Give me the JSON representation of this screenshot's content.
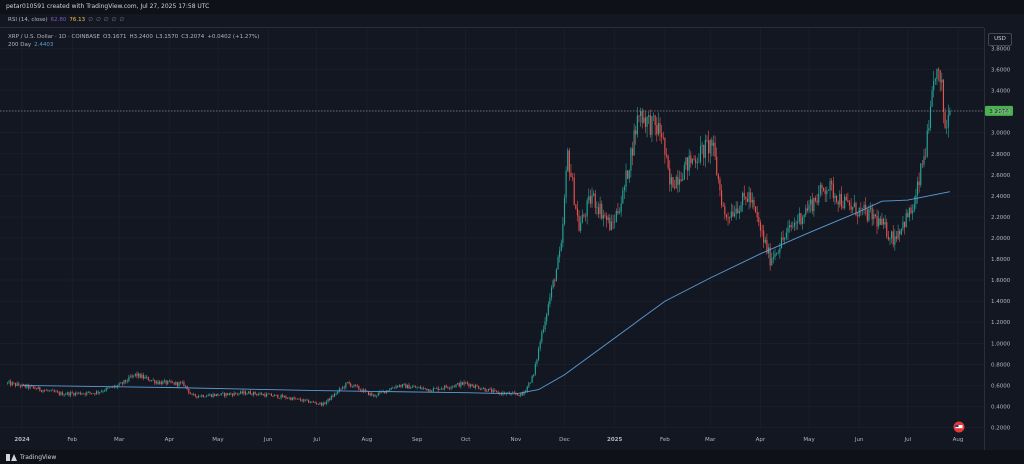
{
  "header": {
    "author_line": "petar010591 created with TradingView.com, Jul 27, 2025 17:58 UTC"
  },
  "rsi": {
    "label": "RSI (14, close)",
    "value1": "62.80",
    "value2": "76.13",
    "placeholders": [
      "∅",
      "∅",
      "∅",
      "∅",
      "∅"
    ]
  },
  "legend": {
    "symbol": "XRP / U.S. Dollar · 1D · COINBASE",
    "open": "O3.1671",
    "high": "H3.2400",
    "low": "L3.1570",
    "close": "C3.2074",
    "change": "+0.0402 (+1.27%)",
    "ma_label": "200 Day",
    "ma_value": "2.4403"
  },
  "axis": {
    "currency": "USD",
    "current_price_label": "3.2074"
  },
  "footer": {
    "brand": "TradingView"
  },
  "colors": {
    "background": "#131722",
    "up": "#26a69a",
    "down": "#ef5350",
    "ma": "#5b9cd6",
    "grid": "#1e222d",
    "price_badge": "#4caf50"
  },
  "icons": {
    "brand_logo": "tradingview-logo-icon",
    "event_marker": "us-flag-icon"
  },
  "chart_data": {
    "type": "candlestick",
    "title": "XRP / U.S. Dollar · 1D · COINBASE",
    "xlabel": "",
    "ylabel": "",
    "ylim": [
      0.1,
      3.9
    ],
    "x_ticks": [
      {
        "date": "2024-01-01",
        "label": "2024"
      },
      {
        "date": "2024-02-01",
        "label": "Feb"
      },
      {
        "date": "2024-03-01",
        "label": "Mar"
      },
      {
        "date": "2024-04-01",
        "label": "Apr"
      },
      {
        "date": "2024-05-01",
        "label": "May"
      },
      {
        "date": "2024-06-01",
        "label": "Jun"
      },
      {
        "date": "2024-07-01",
        "label": "Jul"
      },
      {
        "date": "2024-08-01",
        "label": "Aug"
      },
      {
        "date": "2024-09-01",
        "label": "Sep"
      },
      {
        "date": "2024-10-01",
        "label": "Oct"
      },
      {
        "date": "2024-11-01",
        "label": "Nov"
      },
      {
        "date": "2024-12-01",
        "label": "Dec"
      },
      {
        "date": "2025-01-01",
        "label": "2025"
      },
      {
        "date": "2025-02-01",
        "label": "Feb"
      },
      {
        "date": "2025-03-01",
        "label": "Mar"
      },
      {
        "date": "2025-04-01",
        "label": "Apr"
      },
      {
        "date": "2025-05-01",
        "label": "May"
      },
      {
        "date": "2025-06-01",
        "label": "Jun"
      },
      {
        "date": "2025-07-01",
        "label": "Jul"
      },
      {
        "date": "2025-08-01",
        "label": "Aug"
      }
    ],
    "y_ticks": [
      "0.2000",
      "0.4000",
      "0.6000",
      "0.8000",
      "1.0000",
      "1.2000",
      "1.4000",
      "1.6000",
      "1.8000",
      "2.0000",
      "2.2000",
      "2.4000",
      "2.6000",
      "2.8000",
      "3.0000",
      "3.2000",
      "3.4000",
      "3.6000",
      "3.8000"
    ],
    "current_price": 3.2074,
    "price_path": [
      {
        "date": "2023-12-23",
        "close": 0.62
      },
      {
        "date": "2024-01-10",
        "close": 0.57
      },
      {
        "date": "2024-01-25",
        "close": 0.52
      },
      {
        "date": "2024-02-15",
        "close": 0.53
      },
      {
        "date": "2024-03-01",
        "close": 0.6
      },
      {
        "date": "2024-03-11",
        "close": 0.7
      },
      {
        "date": "2024-03-25",
        "close": 0.63
      },
      {
        "date": "2024-04-10",
        "close": 0.61
      },
      {
        "date": "2024-04-15",
        "close": 0.5
      },
      {
        "date": "2024-05-01",
        "close": 0.51
      },
      {
        "date": "2024-05-20",
        "close": 0.53
      },
      {
        "date": "2024-06-10",
        "close": 0.49
      },
      {
        "date": "2024-07-05",
        "close": 0.42
      },
      {
        "date": "2024-07-20",
        "close": 0.62
      },
      {
        "date": "2024-08-05",
        "close": 0.5
      },
      {
        "date": "2024-08-20",
        "close": 0.6
      },
      {
        "date": "2024-09-10",
        "close": 0.56
      },
      {
        "date": "2024-10-01",
        "close": 0.62
      },
      {
        "date": "2024-10-20",
        "close": 0.53
      },
      {
        "date": "2024-11-05",
        "close": 0.51
      },
      {
        "date": "2024-11-12",
        "close": 0.7
      },
      {
        "date": "2024-11-17",
        "close": 1.1
      },
      {
        "date": "2024-11-23",
        "close": 1.5
      },
      {
        "date": "2024-11-29",
        "close": 1.9
      },
      {
        "date": "2024-12-03",
        "close": 2.8
      },
      {
        "date": "2024-12-10",
        "close": 2.1
      },
      {
        "date": "2024-12-18",
        "close": 2.4
      },
      {
        "date": "2024-12-30",
        "close": 2.1
      },
      {
        "date": "2025-01-06",
        "close": 2.4
      },
      {
        "date": "2025-01-16",
        "close": 3.2
      },
      {
        "date": "2025-01-22",
        "close": 3.1
      },
      {
        "date": "2025-01-30",
        "close": 3.0
      },
      {
        "date": "2025-02-04",
        "close": 2.5
      },
      {
        "date": "2025-02-15",
        "close": 2.7
      },
      {
        "date": "2025-03-02",
        "close": 2.9
      },
      {
        "date": "2025-03-10",
        "close": 2.2
      },
      {
        "date": "2025-03-25",
        "close": 2.4
      },
      {
        "date": "2025-04-07",
        "close": 1.8
      },
      {
        "date": "2025-04-20",
        "close": 2.1
      },
      {
        "date": "2025-05-12",
        "close": 2.5
      },
      {
        "date": "2025-05-25",
        "close": 2.3
      },
      {
        "date": "2025-06-10",
        "close": 2.2
      },
      {
        "date": "2025-06-22",
        "close": 2.0
      },
      {
        "date": "2025-07-05",
        "close": 2.3
      },
      {
        "date": "2025-07-10",
        "close": 2.7
      },
      {
        "date": "2025-07-14",
        "close": 3.0
      },
      {
        "date": "2025-07-18",
        "close": 3.6
      },
      {
        "date": "2025-07-22",
        "close": 3.4
      },
      {
        "date": "2025-07-24",
        "close": 3.05
      },
      {
        "date": "2025-07-27",
        "close": 3.2074
      }
    ],
    "ma_200": [
      {
        "date": "2024-01-01",
        "value": 0.6
      },
      {
        "date": "2024-04-01",
        "value": 0.58
      },
      {
        "date": "2024-07-01",
        "value": 0.55
      },
      {
        "date": "2024-10-01",
        "value": 0.53
      },
      {
        "date": "2024-11-01",
        "value": 0.52
      },
      {
        "date": "2024-11-15",
        "value": 0.56
      },
      {
        "date": "2024-12-01",
        "value": 0.7
      },
      {
        "date": "2025-01-01",
        "value": 1.05
      },
      {
        "date": "2025-02-01",
        "value": 1.4
      },
      {
        "date": "2025-03-01",
        "value": 1.62
      },
      {
        "date": "2025-04-01",
        "value": 1.85
      },
      {
        "date": "2025-05-01",
        "value": 2.05
      },
      {
        "date": "2025-06-01",
        "value": 2.25
      },
      {
        "date": "2025-06-15",
        "value": 2.35
      },
      {
        "date": "2025-07-01",
        "value": 2.36
      },
      {
        "date": "2025-07-27",
        "value": 2.44
      }
    ],
    "grid": true
  }
}
